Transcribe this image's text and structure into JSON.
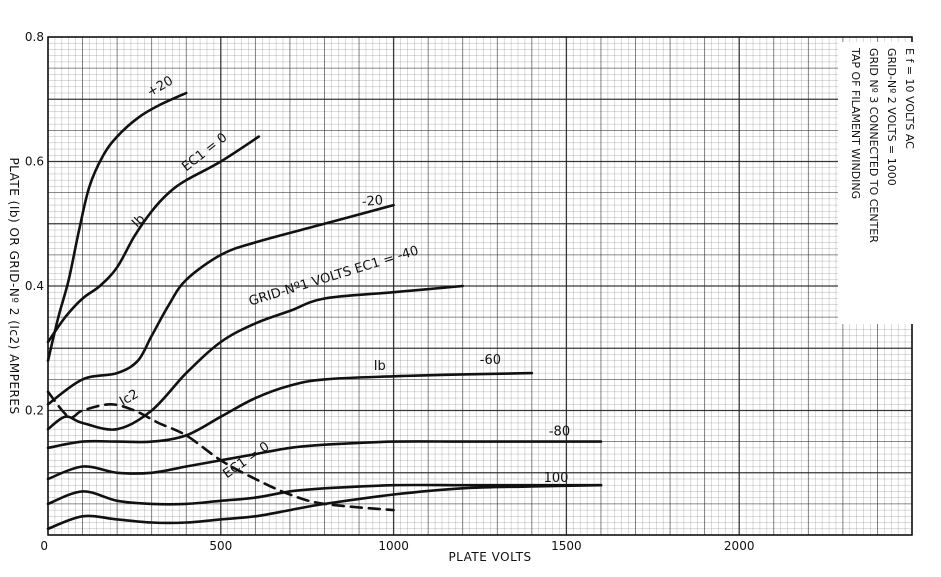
{
  "chart_data": {
    "type": "line",
    "xlabel": "PLATE VOLTS",
    "ylabel": "PLATE (Ib) OR GRID-Nº 2 (Ic2) AMPERES",
    "xlim": [
      0,
      2500
    ],
    "ylim": [
      0,
      0.8
    ],
    "x_ticks": [
      {
        "value": 0,
        "label": "0"
      },
      {
        "value": 500,
        "label": "500"
      },
      {
        "value": 1000,
        "label": "1000"
      },
      {
        "value": 1500,
        "label": "1500"
      },
      {
        "value": 2000,
        "label": "2000"
      }
    ],
    "y_ticks": [
      {
        "value": 0.2,
        "label": "0.2"
      },
      {
        "value": 0.4,
        "label": "0.4"
      },
      {
        "value": 0.6,
        "label": "0.6"
      },
      {
        "value": 0.8,
        "label": "0.8"
      }
    ],
    "grid": true,
    "note": {
      "lines": [
        "E f = 10 VOLTS  AC",
        "GRID-Nº 2 VOLTS = 1000",
        "GRID Nº 3 CONNECTED TO CENTER",
        "TAP OF FILAMENT WINDING"
      ],
      "placement": "top-right"
    },
    "series": [
      {
        "name": "+20",
        "group": "Ib",
        "style": "solid",
        "x": [
          0,
          30,
          60,
          90,
          120,
          160,
          200,
          260,
          320,
          400
        ],
        "y": [
          0.28,
          0.35,
          0.41,
          0.49,
          0.56,
          0.61,
          0.64,
          0.67,
          0.69,
          0.71
        ]
      },
      {
        "name": "EC1 = 0",
        "group": "Ib",
        "style": "solid",
        "x": [
          0,
          50,
          100,
          150,
          200,
          250,
          300,
          350,
          400,
          500,
          610
        ],
        "y": [
          0.31,
          0.35,
          0.38,
          0.4,
          0.43,
          0.48,
          0.52,
          0.55,
          0.57,
          0.6,
          0.64
        ]
      },
      {
        "name": "-20",
        "group": "Ib",
        "style": "solid",
        "x": [
          0,
          100,
          200,
          260,
          300,
          350,
          400,
          500,
          600,
          800,
          1000
        ],
        "y": [
          0.21,
          0.25,
          0.26,
          0.28,
          0.32,
          0.37,
          0.41,
          0.45,
          0.47,
          0.5,
          0.53
        ]
      },
      {
        "name": "-40",
        "group": "Ib",
        "style": "solid",
        "x": [
          0,
          50,
          100,
          200,
          300,
          400,
          500,
          600,
          700,
          800,
          1000,
          1200
        ],
        "y": [
          0.17,
          0.19,
          0.18,
          0.17,
          0.2,
          0.26,
          0.31,
          0.34,
          0.36,
          0.38,
          0.39,
          0.4
        ]
      },
      {
        "name": "-60",
        "group": "Ib",
        "style": "solid",
        "x": [
          0,
          100,
          200,
          300,
          400,
          500,
          600,
          700,
          800,
          1000,
          1200,
          1400
        ],
        "y": [
          0.14,
          0.15,
          0.15,
          0.15,
          0.16,
          0.19,
          0.22,
          0.24,
          0.25,
          0.255,
          0.258,
          0.26
        ]
      },
      {
        "name": "-80",
        "group": "Ib",
        "style": "solid",
        "x": [
          0,
          100,
          200,
          300,
          400,
          500,
          600,
          700,
          800,
          1000,
          1200,
          1400,
          1600
        ],
        "y": [
          0.09,
          0.11,
          0.1,
          0.1,
          0.11,
          0.12,
          0.13,
          0.14,
          0.145,
          0.15,
          0.15,
          0.15,
          0.15
        ]
      },
      {
        "name": "-100",
        "group": "Ib",
        "style": "solid",
        "x": [
          0,
          100,
          200,
          300,
          400,
          500,
          600,
          700,
          800,
          1000,
          1200,
          1400,
          1600
        ],
        "y": [
          0.05,
          0.07,
          0.055,
          0.05,
          0.05,
          0.055,
          0.06,
          0.07,
          0.075,
          0.08,
          0.08,
          0.08,
          0.08
        ]
      },
      {
        "name": "-100 (lower)",
        "group": "Ib",
        "style": "solid",
        "x": [
          0,
          100,
          200,
          300,
          400,
          500,
          600,
          700,
          800,
          1000,
          1200,
          1400,
          1600
        ],
        "y": [
          0.01,
          0.03,
          0.025,
          0.02,
          0.02,
          0.025,
          0.03,
          0.04,
          0.05,
          0.065,
          0.075,
          0.078,
          0.08
        ]
      },
      {
        "name": "Ic2 (EC1 = 0)",
        "group": "Ic2",
        "style": "dashed",
        "x": [
          0,
          60,
          100,
          180,
          250,
          320,
          400,
          500,
          600,
          700,
          800,
          1000
        ],
        "y": [
          0.23,
          0.19,
          0.2,
          0.21,
          0.2,
          0.18,
          0.16,
          0.12,
          0.09,
          0.065,
          0.05,
          0.04
        ]
      }
    ],
    "annotations": [
      {
        "text": "+20",
        "x": 330,
        "y": 0.715,
        "rotate": -30
      },
      {
        "text": "EC1 = 0",
        "x": 460,
        "y": 0.61,
        "rotate": -38
      },
      {
        "text": "Ib",
        "x": 270,
        "y": 0.5,
        "rotate": -45
      },
      {
        "text": "-20",
        "x": 940,
        "y": 0.53,
        "rotate": -5
      },
      {
        "text": "GRID-Nº1 VOLTS EC1 = -40",
        "x": 830,
        "y": 0.41,
        "rotate": -17
      },
      {
        "text": "Ib",
        "x": 960,
        "y": 0.265,
        "rotate": 0
      },
      {
        "text": "-60",
        "x": 1280,
        "y": 0.275,
        "rotate": 0
      },
      {
        "text": "Ic2",
        "x": 240,
        "y": 0.215,
        "rotate": -30
      },
      {
        "text": "-80",
        "x": 1480,
        "y": 0.16,
        "rotate": 0
      },
      {
        "text": "EC1 = 0",
        "x": 580,
        "y": 0.115,
        "rotate": -35
      },
      {
        "text": "100",
        "x": 1470,
        "y": 0.085,
        "rotate": 0
      }
    ]
  }
}
